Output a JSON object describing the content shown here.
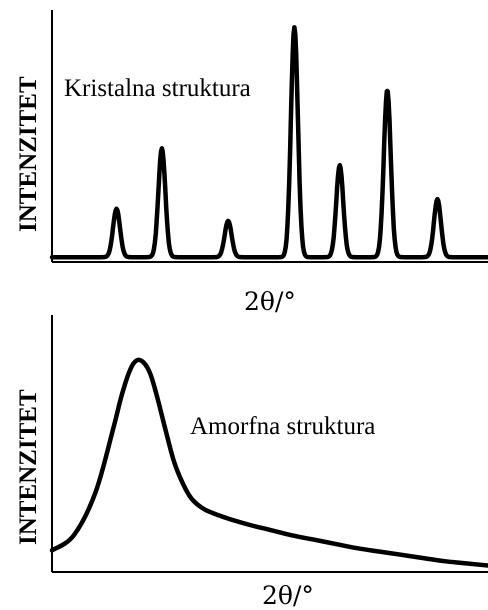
{
  "chart_data": [
    {
      "type": "line",
      "annotation": "Kristalna struktura",
      "xlabel": "2θ/°",
      "ylabel": "INTENZITET",
      "xlim": [
        0,
        100
      ],
      "ylim": [
        0,
        100
      ],
      "baseline": 2,
      "series": [
        {
          "peaks": [
            {
              "x": 14.8,
              "y": 22
            },
            {
              "x": 25.2,
              "y": 47
            },
            {
              "x": 40.4,
              "y": 17
            },
            {
              "x": 55.6,
              "y": 97
            },
            {
              "x": 66.0,
              "y": 40
            },
            {
              "x": 76.9,
              "y": 71
            },
            {
              "x": 88.4,
              "y": 26
            }
          ],
          "width": 0.8
        }
      ],
      "grid": false
    },
    {
      "type": "line",
      "annotation": "Amorfna struktura",
      "xlabel": "2θ/°",
      "ylabel": "INTENZITET",
      "xlim": [
        0,
        100
      ],
      "ylim": [
        0,
        100
      ],
      "series": [
        {
          "x": [
            0,
            5,
            10,
            14,
            16,
            18,
            19.5,
            21,
            22.5,
            24,
            26,
            28,
            30,
            32,
            35,
            40,
            45,
            50,
            55,
            60,
            65,
            70,
            75,
            80,
            85,
            90,
            95,
            100
          ],
          "y": [
            10,
            17,
            37,
            66,
            82,
            94,
            98,
            97,
            92,
            82,
            66,
            51,
            41,
            34,
            29,
            25,
            22,
            19.5,
            17,
            15,
            13,
            11,
            9.5,
            8,
            6.5,
            5,
            4,
            3
          ]
        }
      ],
      "grid": false
    }
  ]
}
